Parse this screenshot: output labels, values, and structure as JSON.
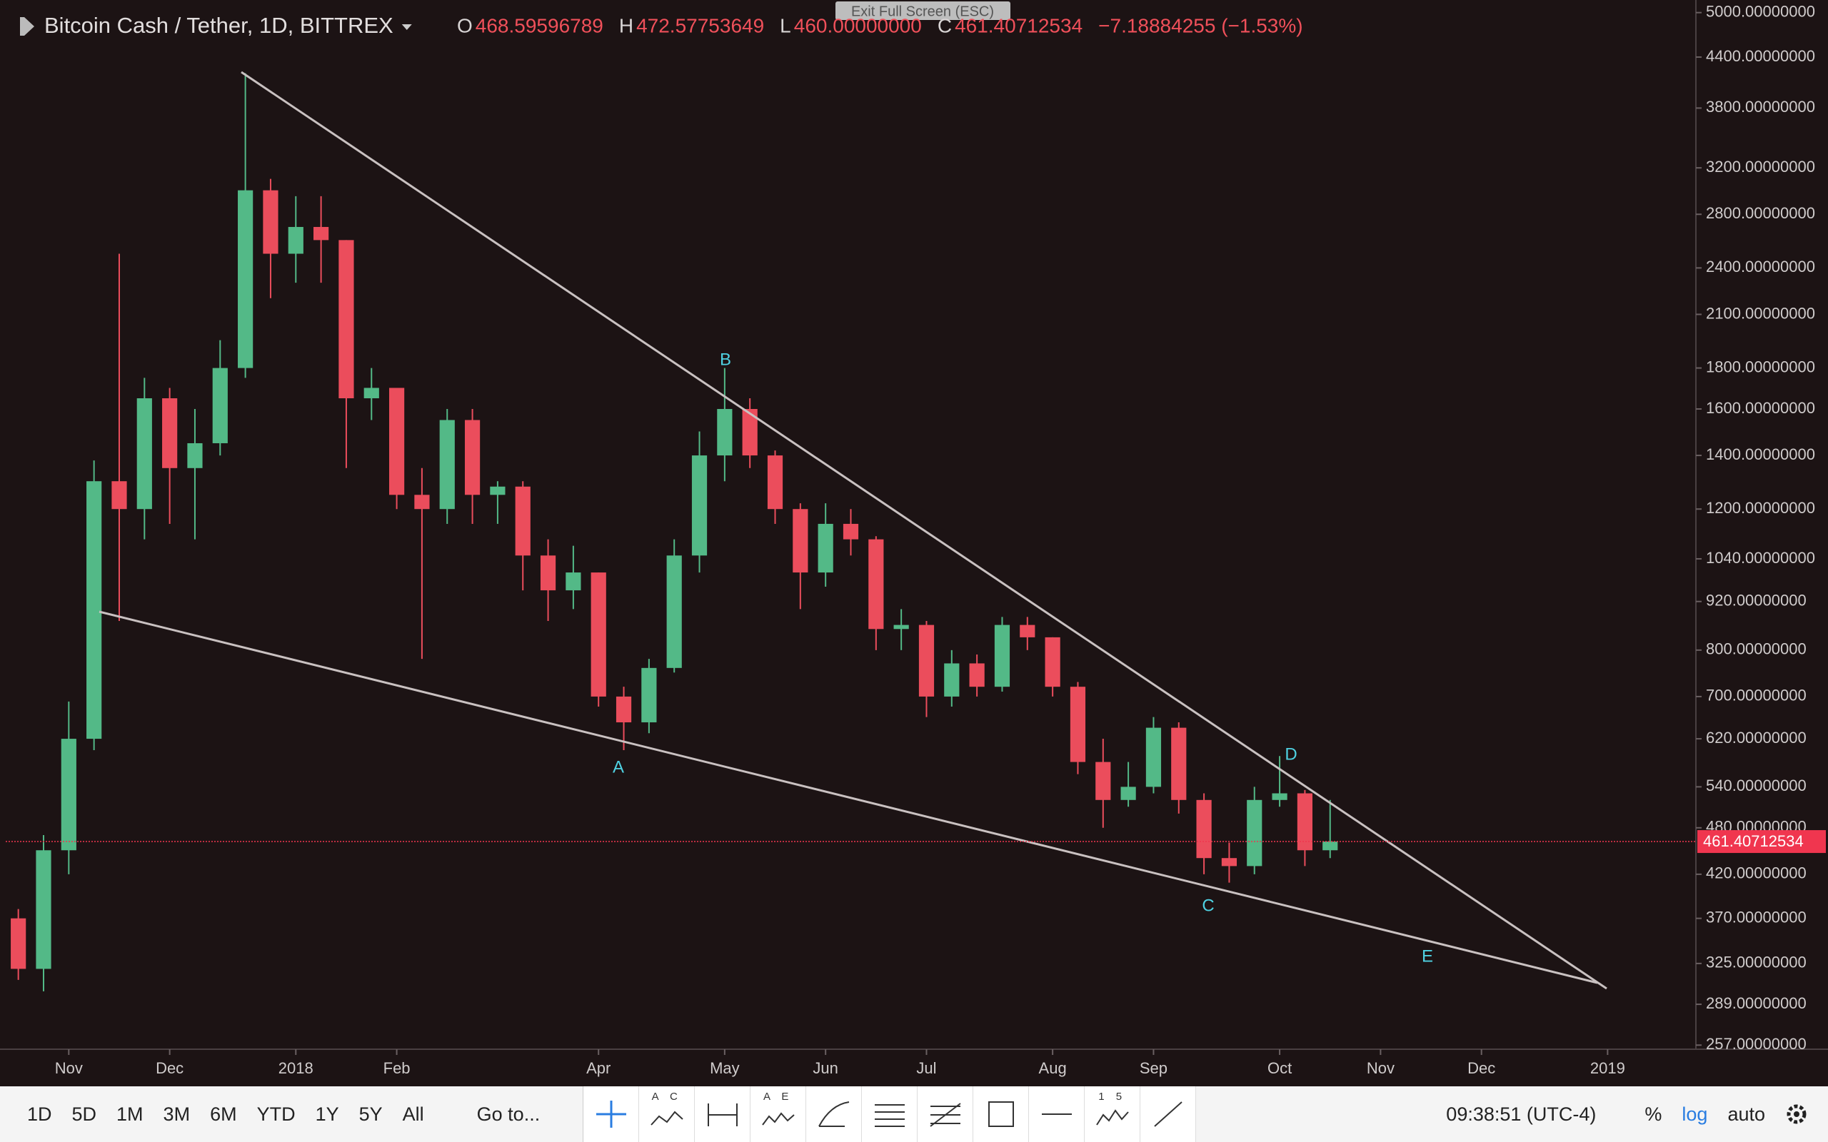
{
  "chart_data": {
    "type": "candlestick",
    "title": "Bitcoin Cash / Tether, 1D, BITTREX",
    "legend": [
      {
        "key": "O",
        "value": "468.59596789"
      },
      {
        "key": "H",
        "value": "472.57753649"
      },
      {
        "key": "L",
        "value": "460.00000000"
      },
      {
        "key": "C",
        "value": "461.40712534"
      }
    ],
    "change": "−7.18884255 (−1.53%)",
    "categories": [
      null,
      null,
      "Nov",
      null,
      null,
      null,
      "Dec",
      null,
      null,
      null,
      null,
      "2018",
      null,
      null,
      null,
      "Feb",
      null,
      null,
      null,
      null,
      null,
      null,
      null,
      "Apr",
      null,
      null,
      null,
      null,
      "May",
      null,
      null,
      null,
      "Jun",
      null,
      null,
      null,
      "Jul",
      null,
      null,
      null,
      null,
      "Aug",
      null,
      null,
      null,
      "Sep",
      null,
      null,
      null,
      null,
      "Oct",
      null,
      null,
      null,
      "Nov",
      null,
      null,
      null,
      "Dec",
      null,
      null,
      null,
      null,
      "2019",
      null,
      null,
      null
    ],
    "open": [
      370,
      320,
      450,
      620,
      1300,
      1200,
      1650,
      1350,
      1450,
      1800,
      3000,
      2500,
      2700,
      2600,
      1650,
      1700,
      1250,
      1200,
      1550,
      1250,
      1280,
      1050,
      950,
      1000,
      700,
      650,
      760,
      1050,
      1400,
      1600,
      1400,
      1200,
      1000,
      1150,
      1100,
      850,
      860,
      700,
      770,
      720,
      860,
      830,
      720,
      580,
      520,
      540,
      640,
      520,
      440,
      430,
      520,
      530,
      450,
      null,
      null,
      null,
      null,
      null,
      null,
      null,
      null,
      null,
      null,
      null,
      null,
      null,
      null
    ],
    "high": [
      380,
      470,
      690,
      1380,
      2500,
      1750,
      1700,
      1600,
      1950,
      4200,
      3100,
      2950,
      2950,
      2600,
      1800,
      1700,
      1350,
      1600,
      1600,
      1300,
      1300,
      1100,
      1080,
      1000,
      720,
      780,
      1100,
      1500,
      1800,
      1650,
      1420,
      1220,
      1220,
      1200,
      1110,
      900,
      870,
      800,
      790,
      880,
      880,
      830,
      730,
      620,
      580,
      660,
      650,
      530,
      460,
      540,
      590,
      535,
      520,
      null,
      null,
      null,
      null,
      null,
      null,
      null,
      null,
      null,
      null,
      null,
      null,
      null,
      null
    ],
    "low": [
      310,
      300,
      420,
      600,
      870,
      1100,
      1150,
      1100,
      1400,
      1750,
      2200,
      2300,
      2300,
      1350,
      1550,
      1200,
      780,
      1150,
      1150,
      1150,
      950,
      870,
      900,
      680,
      600,
      630,
      750,
      1000,
      1300,
      1350,
      1150,
      900,
      960,
      1050,
      800,
      800,
      660,
      680,
      700,
      710,
      800,
      700,
      560,
      480,
      510,
      530,
      500,
      420,
      410,
      420,
      510,
      430,
      440,
      null,
      null,
      null,
      null,
      null,
      null,
      null,
      null,
      null,
      null,
      null,
      null,
      null,
      null
    ],
    "close": [
      320,
      450,
      620,
      1300,
      1200,
      1650,
      1350,
      1450,
      1800,
      3000,
      2500,
      2700,
      2600,
      1650,
      1700,
      1250,
      1200,
      1550,
      1250,
      1280,
      1050,
      950,
      1000,
      700,
      650,
      760,
      1050,
      1400,
      1600,
      1400,
      1200,
      1000,
      1150,
      1100,
      850,
      860,
      700,
      770,
      720,
      860,
      830,
      720,
      580,
      520,
      540,
      640,
      520,
      440,
      430,
      520,
      530,
      450,
      461.40712534,
      null,
      null,
      null,
      null,
      null,
      null,
      null,
      null,
      null,
      null,
      null,
      null,
      null,
      null
    ],
    "up_color": "#53b987",
    "down_color": "#eb4d5c",
    "log_scale": true,
    "ylim": [
      254,
      5100
    ],
    "yticks": [
      {
        "value": 5000,
        "label": "5000.00000000"
      },
      {
        "value": 4400,
        "label": "4400.00000000"
      },
      {
        "value": 3800,
        "label": "3800.00000000"
      },
      {
        "value": 3200,
        "label": "3200.00000000"
      },
      {
        "value": 2800,
        "label": "2800.00000000"
      },
      {
        "value": 2400,
        "label": "2400.00000000"
      },
      {
        "value": 2100,
        "label": "2100.00000000"
      },
      {
        "value": 1800,
        "label": "1800.00000000"
      },
      {
        "value": 1600,
        "label": "1600.00000000"
      },
      {
        "value": 1400,
        "label": "1400.00000000"
      },
      {
        "value": 1200,
        "label": "1200.00000000"
      },
      {
        "value": 1040,
        "label": "1040.00000000"
      },
      {
        "value": 920,
        "label": "920.00000000"
      },
      {
        "value": 800,
        "label": "800.00000000"
      },
      {
        "value": 700,
        "label": "700.00000000"
      },
      {
        "value": 620,
        "label": "620.00000000"
      },
      {
        "value": 540,
        "label": "540.00000000"
      },
      {
        "value": 480,
        "label": "480.00000000"
      },
      {
        "value": 420,
        "label": "420.00000000"
      },
      {
        "value": 370,
        "label": "370.00000000"
      },
      {
        "value": 325,
        "label": "325.00000000"
      },
      {
        "value": 289,
        "label": "289.00000000"
      },
      {
        "value": 257,
        "label": "257.00000000"
      }
    ],
    "last_price": {
      "value": 461.40712534,
      "label": "461.40712534"
    },
    "last_price_color": "#f0364f",
    "annotations": [
      "A",
      "B",
      "C",
      "D",
      "E"
    ]
  },
  "overlay": "Exit Full Screen (ESC)",
  "toolbar": {
    "ranges": [
      "1D",
      "5D",
      "1M",
      "3M",
      "6M",
      "YTD",
      "1Y",
      "5Y",
      "All"
    ],
    "goto": "Go to...",
    "tools": [
      "A C",
      "A E",
      "1 5"
    ],
    "time": "09:38:51 (UTC-4)",
    "percent": "%",
    "log": "log",
    "auto": "auto"
  }
}
